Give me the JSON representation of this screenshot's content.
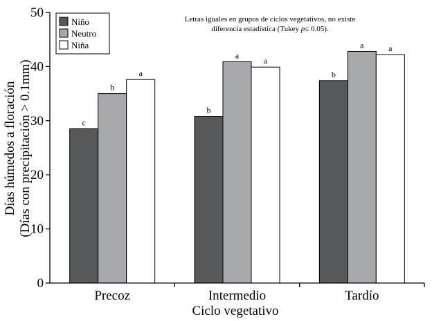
{
  "chart_data": {
    "type": "bar",
    "title": "",
    "annotation": {
      "line1": "Letras iguales en grupos de ciclos vegetativos, no existe",
      "line2_pre": "diferencia estadística (Tukey ",
      "line2_italic": "p",
      "line2_post": "≤ 0.05)."
    },
    "xlabel": "Ciclo vegetativo",
    "ylabel_line1": "Días húmedos a floración",
    "ylabel_line2": "(Días con precipitación > 0.1mm)",
    "ylim": [
      0,
      50
    ],
    "yticks": [
      "0",
      "10",
      "20",
      "30",
      "40",
      "50"
    ],
    "categories": [
      "Precoz",
      "Intermedio",
      "Tardío"
    ],
    "series": [
      {
        "name": "Niño",
        "color": "#58595b",
        "values": [
          28.5,
          30.8,
          37.4
        ],
        "letters": [
          "c",
          "b",
          "b"
        ]
      },
      {
        "name": "Neutro",
        "color": "#a7a9ac",
        "values": [
          35.0,
          40.9,
          42.8
        ],
        "letters": [
          "b",
          "a",
          "a"
        ]
      },
      {
        "name": "Niña",
        "color": "#ffffff",
        "values": [
          37.6,
          39.9,
          42.2
        ],
        "letters": [
          "a",
          "a",
          "a"
        ]
      }
    ],
    "legend_position": "top-left",
    "grid": false
  }
}
